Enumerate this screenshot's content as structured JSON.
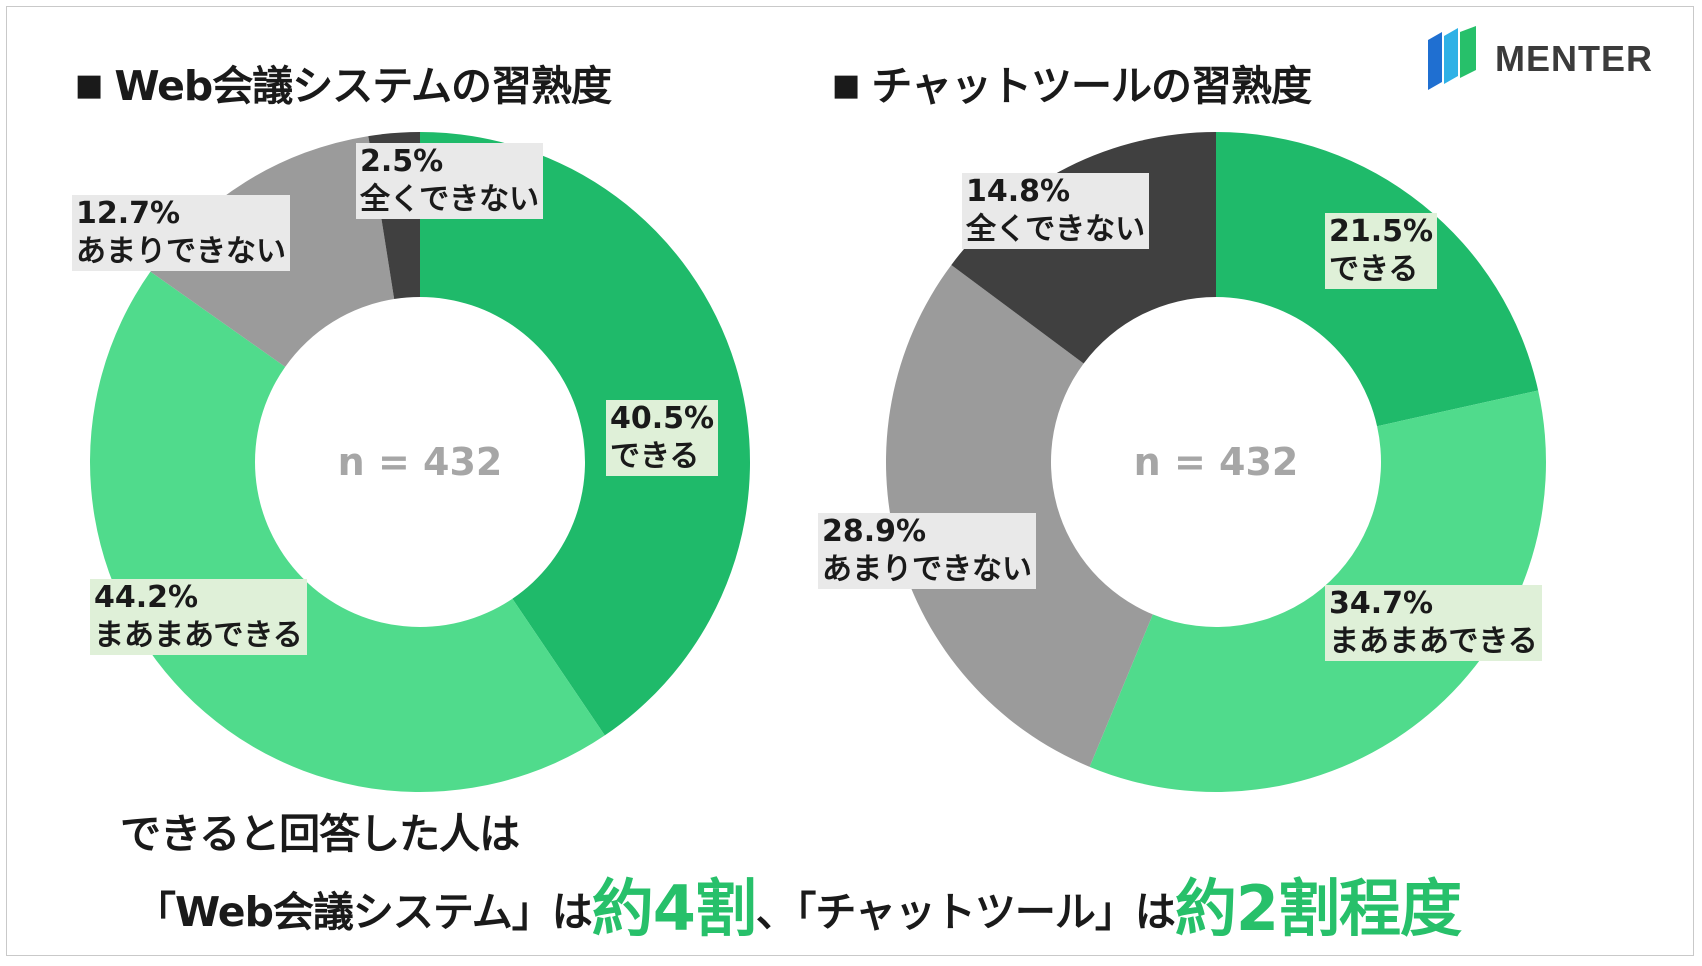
{
  "brand": {
    "name": "MENTER",
    "logo_colors": [
      "#1f6fd1",
      "#2fb1e6",
      "#27c06a"
    ]
  },
  "colors": {
    "dekiru": "#1fba6a",
    "maamaa": "#50db8c",
    "amari": "#9b9b9b",
    "mattaku": "#404040",
    "highlight": "#27c06a"
  },
  "center_label": "n = 432",
  "chart_data": [
    {
      "type": "pie",
      "title": "Web会議システムの習熟度",
      "title_bullet": "■",
      "n_label": "n = 432",
      "slices": [
        {
          "category": "できる",
          "value": 40.5,
          "label": "40.5%"
        },
        {
          "category": "まあまあできる",
          "value": 44.2,
          "label": "44.2%"
        },
        {
          "category": "あまりできない",
          "value": 12.7,
          "label": "12.7%"
        },
        {
          "category": "全くできない",
          "value": 2.5,
          "label": "2.5%"
        }
      ]
    },
    {
      "type": "pie",
      "title": "チャットツールの習熟度",
      "title_bullet": "■",
      "n_label": "n = 432",
      "slices": [
        {
          "category": "できる",
          "value": 21.5,
          "label": "21.5%"
        },
        {
          "category": "まあまあできる",
          "value": 34.7,
          "label": "34.7%"
        },
        {
          "category": "あまりできない",
          "value": 28.9,
          "label": "28.9%"
        },
        {
          "category": "全くできない",
          "value": 14.8,
          "label": "14.8%"
        }
      ]
    }
  ],
  "footer": {
    "line1": "できると回答した人は",
    "part1": "「Web会議システム」は",
    "highlight1": "約4割",
    "part2": "、「チャットツール」は",
    "highlight2": "約2割程度"
  }
}
